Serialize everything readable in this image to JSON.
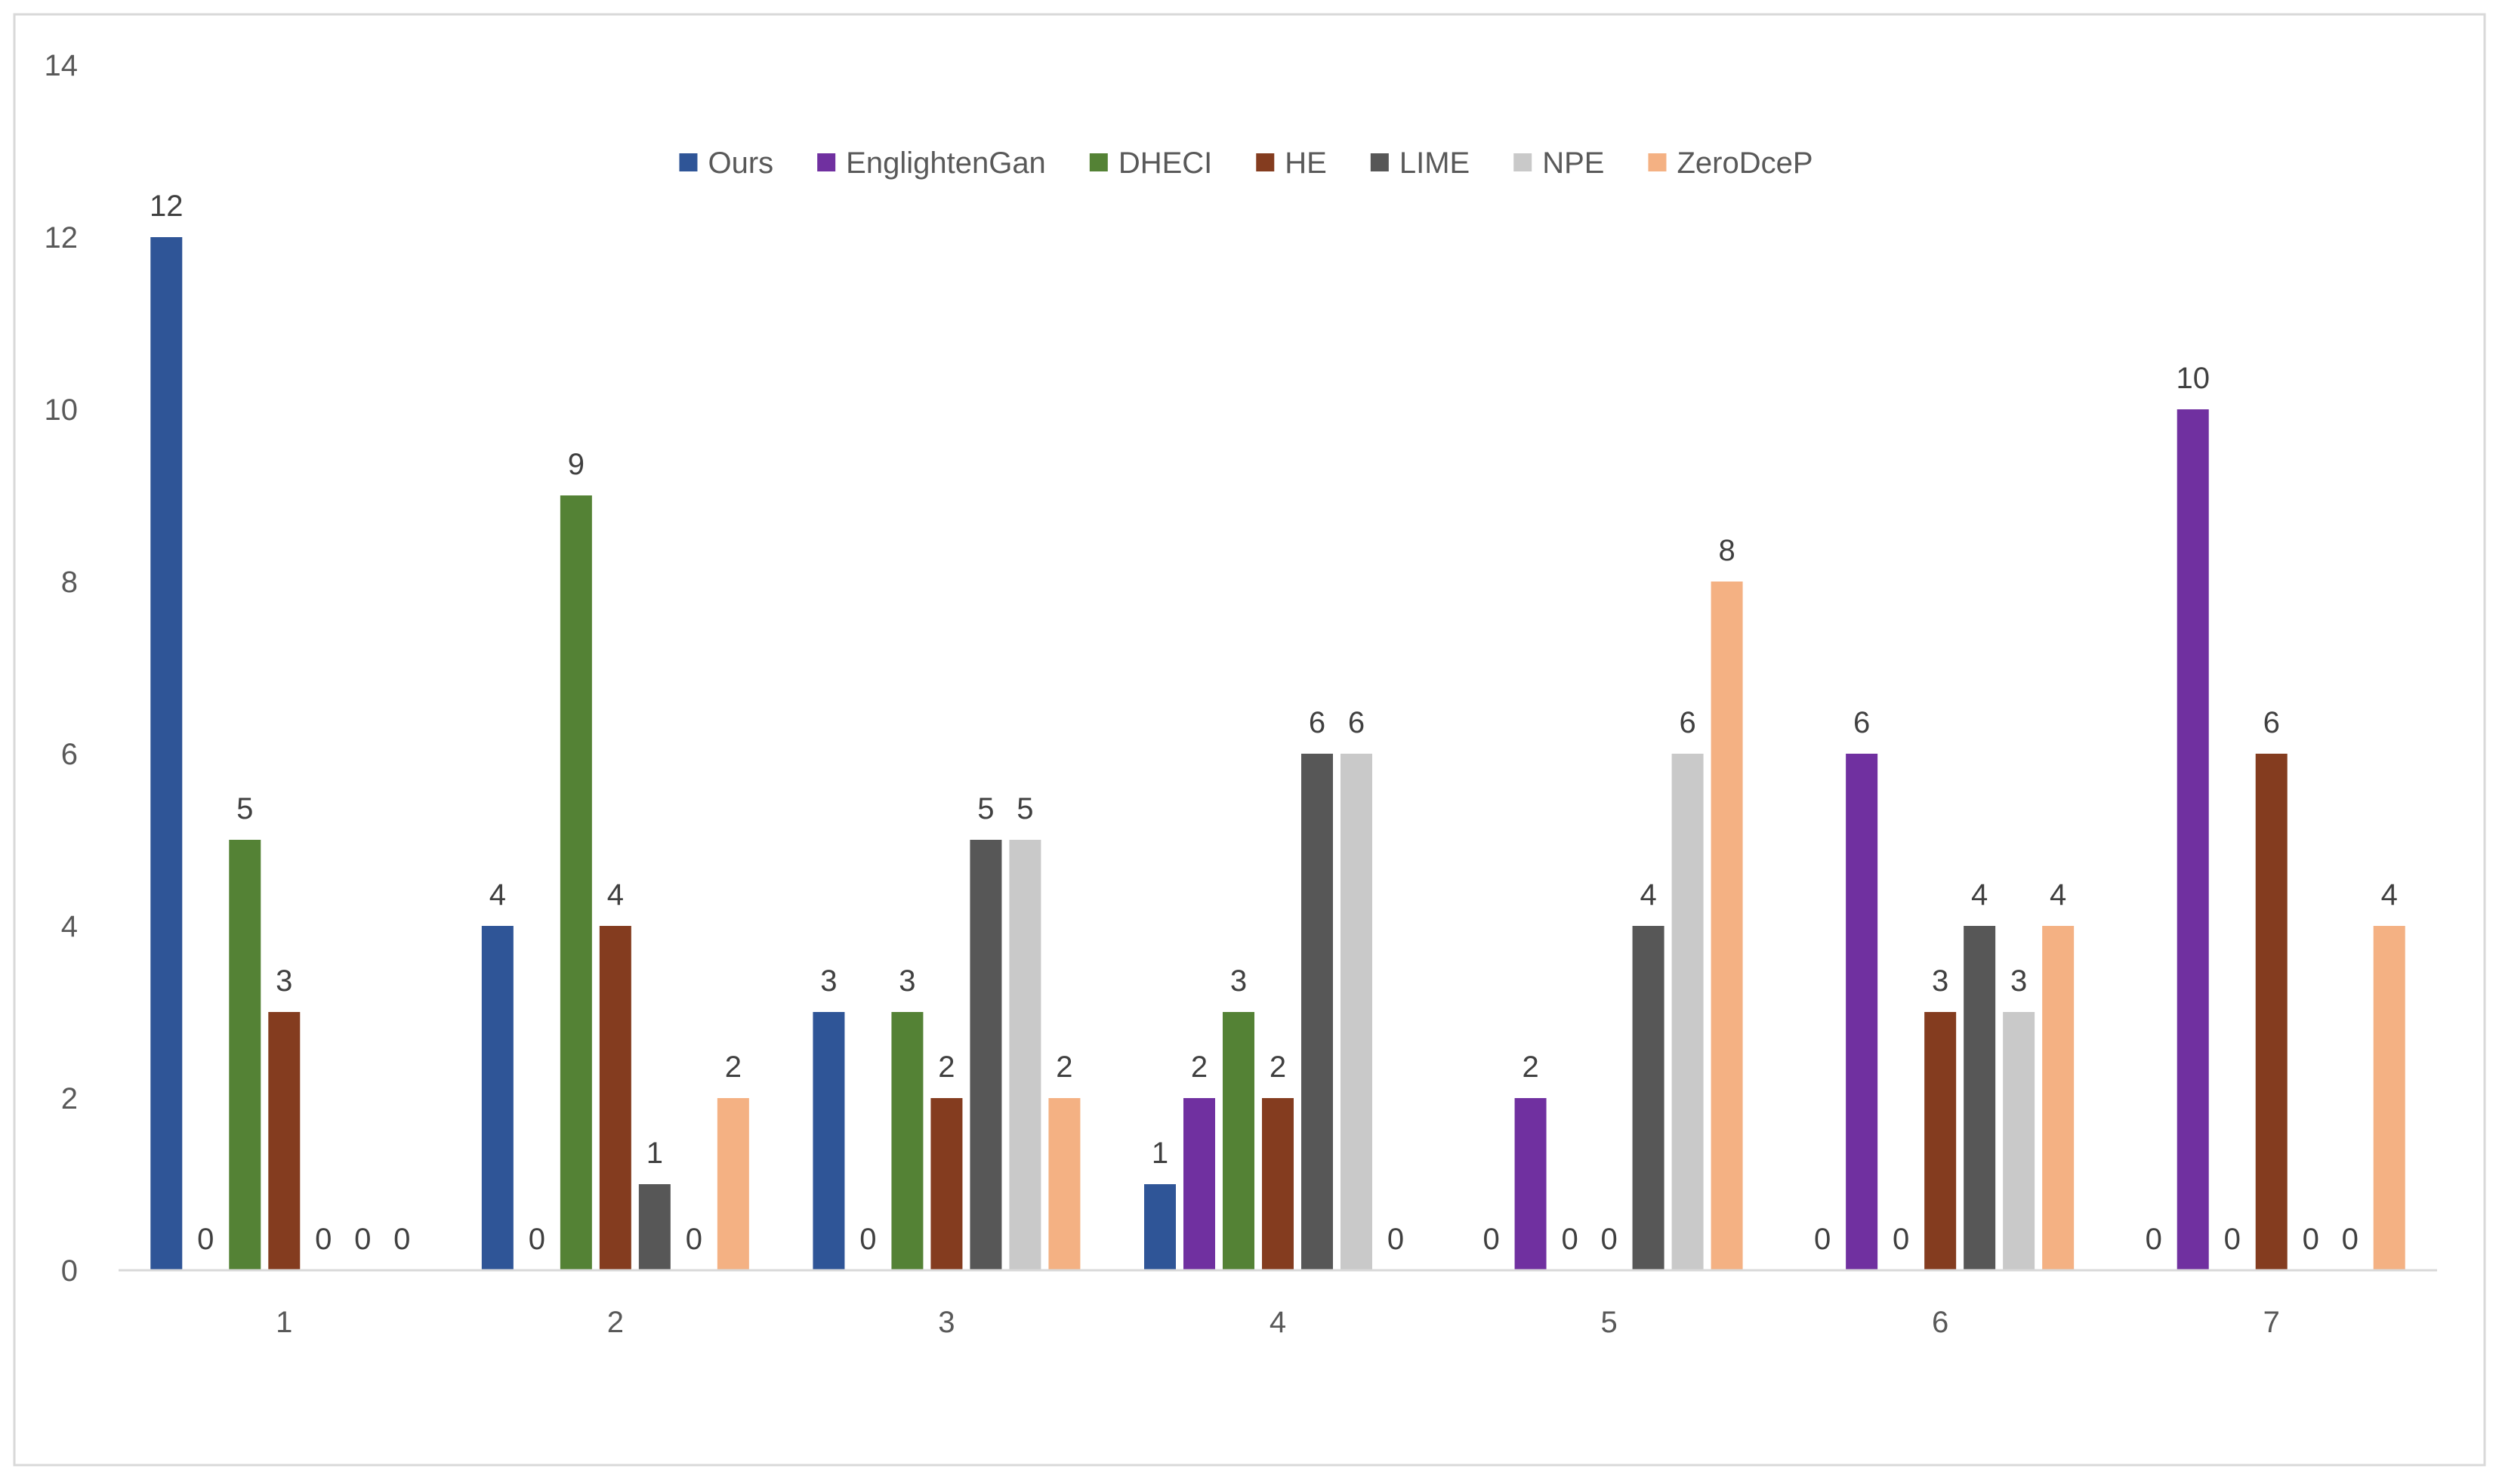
{
  "chart_data": {
    "type": "bar",
    "title": "",
    "xlabel": "",
    "ylabel": "",
    "categories": [
      "1",
      "2",
      "3",
      "4",
      "5",
      "6",
      "7"
    ],
    "ylim": [
      0,
      14
    ],
    "yticks": [
      0,
      2,
      4,
      6,
      8,
      10,
      12,
      14
    ],
    "grid": false,
    "legend_position": "top-center",
    "data_labels": true,
    "series": [
      {
        "name": "Ours",
        "color": "#2F5597",
        "values": [
          12,
          4,
          3,
          1,
          0,
          0,
          0
        ]
      },
      {
        "name": "EnglightenGan",
        "color": "#7030A0",
        "values": [
          0,
          0,
          0,
          2,
          2,
          6,
          10
        ]
      },
      {
        "name": "DHECI",
        "color": "#548235",
        "values": [
          5,
          9,
          3,
          3,
          0,
          0,
          0
        ]
      },
      {
        "name": "HE",
        "color": "#843C1F",
        "values": [
          3,
          4,
          2,
          2,
          0,
          3,
          6
        ]
      },
      {
        "name": "LIME",
        "color": "#575757",
        "values": [
          0,
          1,
          5,
          6,
          4,
          4,
          0
        ]
      },
      {
        "name": "NPE",
        "color": "#C9C9C9",
        "values": [
          0,
          0,
          5,
          6,
          6,
          3,
          0
        ]
      },
      {
        "name": "ZeroDceP",
        "color": "#F4B183",
        "values": [
          0,
          2,
          2,
          0,
          8,
          4,
          4
        ]
      }
    ]
  }
}
